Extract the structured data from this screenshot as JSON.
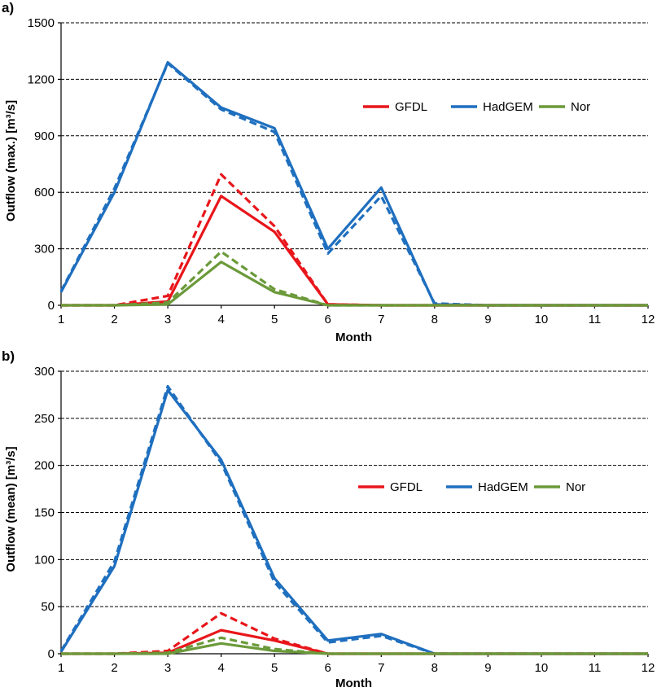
{
  "chart_data": [
    {
      "type": "line",
      "panel_label": "a)",
      "xlabel": "Month",
      "ylabel": "Outflow (max.) [m³/s]",
      "x": [
        1,
        2,
        3,
        4,
        5,
        6,
        7,
        8,
        9,
        10,
        11,
        12
      ],
      "xlim": [
        1,
        12
      ],
      "ylim": [
        0,
        1500
      ],
      "yticks": [
        0,
        300,
        600,
        900,
        1200,
        1500
      ],
      "grid": true,
      "legend": {
        "placement": "upper-right",
        "entries": [
          "GFDL",
          "HadGEM",
          "Nor"
        ]
      },
      "series": [
        {
          "name": "HadGEM",
          "color": "#1f6fbf",
          "style": "solid",
          "values": [
            70,
            600,
            1290,
            1050,
            940,
            300,
            625,
            5,
            0,
            0,
            0,
            0
          ]
        },
        {
          "name": "HadGEM",
          "color": "#1f6fbf",
          "style": "dashed",
          "values": [
            75,
            620,
            1285,
            1040,
            920,
            275,
            580,
            10,
            0,
            0,
            0,
            0
          ]
        },
        {
          "name": "GFDL",
          "color": "#e8161b",
          "style": "solid",
          "values": [
            0,
            0,
            20,
            580,
            390,
            5,
            0,
            0,
            0,
            0,
            0,
            0
          ]
        },
        {
          "name": "GFDL",
          "color": "#e8161b",
          "style": "dashed",
          "values": [
            0,
            0,
            50,
            695,
            420,
            5,
            0,
            0,
            0,
            0,
            0,
            0
          ]
        },
        {
          "name": "Nor",
          "color": "#6b9a3a",
          "style": "solid",
          "values": [
            0,
            0,
            5,
            230,
            70,
            0,
            0,
            0,
            0,
            0,
            0,
            0
          ]
        },
        {
          "name": "Nor",
          "color": "#6b9a3a",
          "style": "dashed",
          "values": [
            0,
            0,
            15,
            285,
            85,
            0,
            0,
            0,
            0,
            0,
            0,
            0
          ]
        }
      ]
    },
    {
      "type": "line",
      "panel_label": "b)",
      "xlabel": "Month",
      "ylabel": "Outflow (mean) [m³/s]",
      "x": [
        1,
        2,
        3,
        4,
        5,
        6,
        7,
        8,
        9,
        10,
        11,
        12
      ],
      "xlim": [
        1,
        12
      ],
      "ylim": [
        0,
        300
      ],
      "yticks": [
        0,
        50,
        100,
        150,
        200,
        250,
        300
      ],
      "grid": true,
      "legend": {
        "placement": "center-right",
        "entries": [
          "GFDL",
          "HadGEM",
          "Nor"
        ]
      },
      "series": [
        {
          "name": "HadGEM",
          "color": "#1f6fbf",
          "style": "solid",
          "values": [
            2,
            93,
            280,
            206,
            80,
            14,
            21,
            0,
            0,
            0,
            0,
            0
          ]
        },
        {
          "name": "HadGEM",
          "color": "#1f6fbf",
          "style": "dashed",
          "values": [
            3,
            98,
            284,
            203,
            76,
            12,
            19,
            0,
            0,
            0,
            0,
            0
          ]
        },
        {
          "name": "GFDL",
          "color": "#e8161b",
          "style": "solid",
          "values": [
            0,
            0,
            1,
            25,
            14,
            0,
            0,
            0,
            0,
            0,
            0,
            0
          ]
        },
        {
          "name": "GFDL",
          "color": "#e8161b",
          "style": "dashed",
          "values": [
            0,
            0,
            3,
            43,
            16,
            0,
            0,
            0,
            0,
            0,
            0,
            0
          ]
        },
        {
          "name": "Nor",
          "color": "#6b9a3a",
          "style": "solid",
          "values": [
            0,
            0,
            0,
            11,
            3,
            0,
            0,
            0,
            0,
            0,
            0,
            0
          ]
        },
        {
          "name": "Nor",
          "color": "#6b9a3a",
          "style": "dashed",
          "values": [
            0,
            0,
            1,
            17,
            5,
            0,
            0,
            0,
            0,
            0,
            0,
            0
          ]
        }
      ]
    }
  ]
}
